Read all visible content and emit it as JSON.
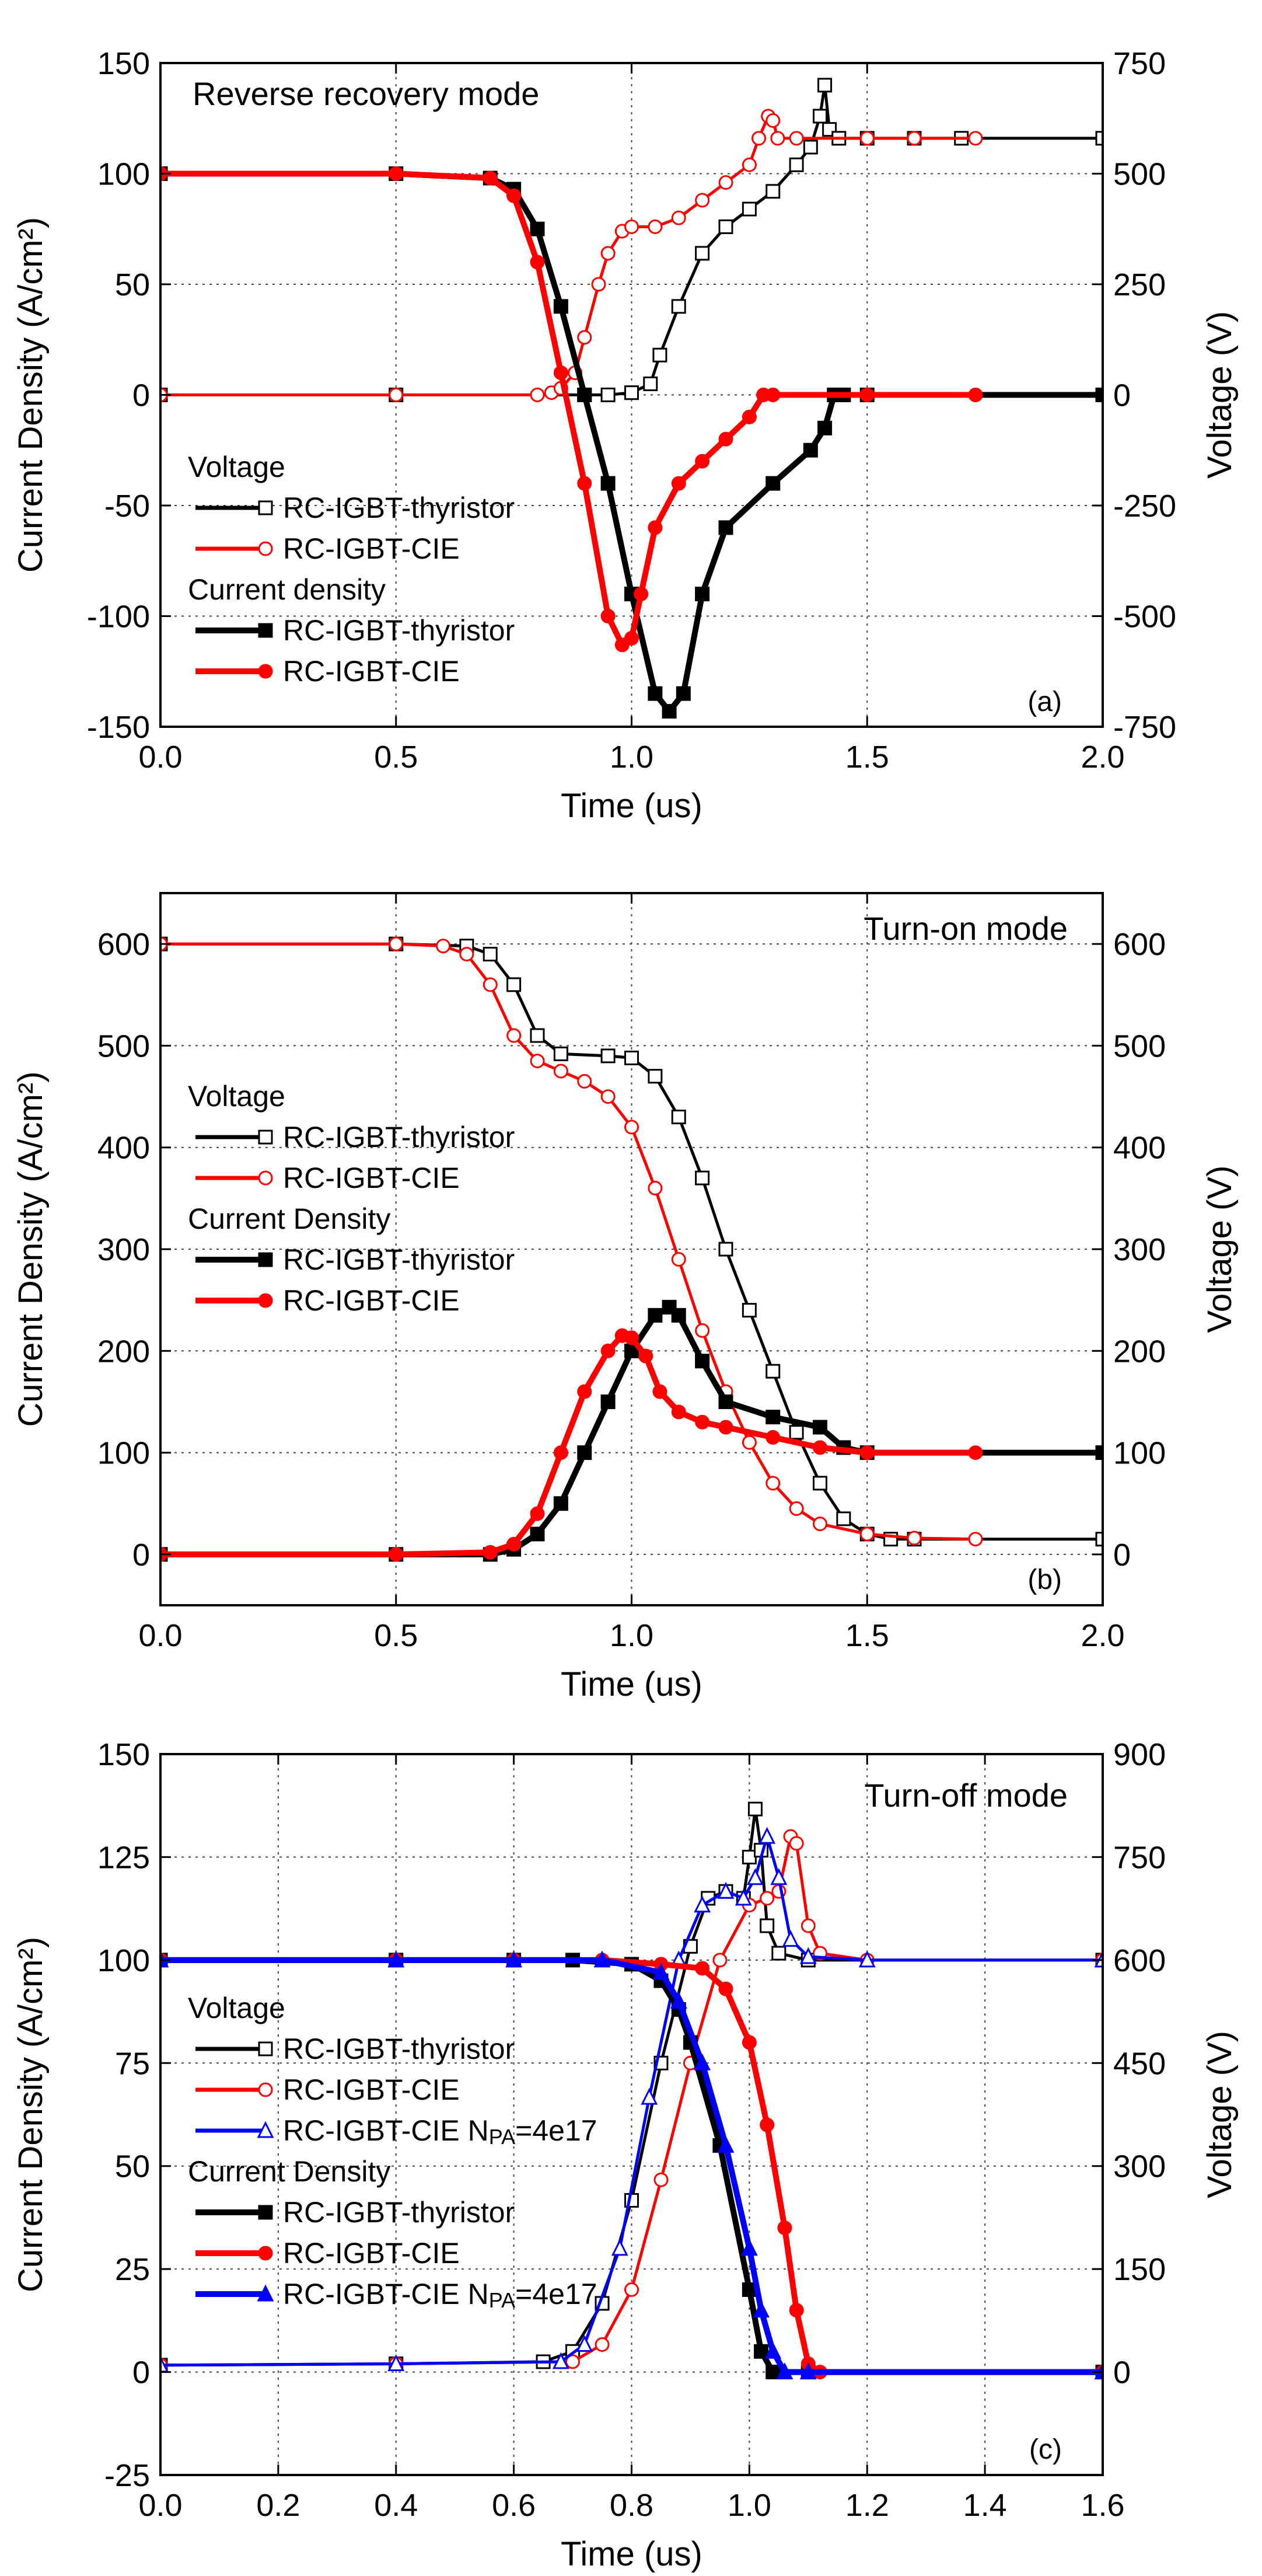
{
  "chart_data": [
    {
      "type": "line",
      "panel_tag": "(a)",
      "mode_label": "Reverse recovery mode",
      "xlabel": "Time (us)",
      "ylabel": "Current Density (A/cm²)",
      "y2label": "Voltage (V)",
      "xlim": [
        0.0,
        2.0
      ],
      "ylim": [
        -150,
        150
      ],
      "y2lim": [
        -750,
        750
      ],
      "xticks": [
        "0.0",
        "0.5",
        "1.0",
        "1.5",
        "2.0"
      ],
      "yticks": [
        "-150",
        "-100",
        "-50",
        "0",
        "50",
        "100",
        "150"
      ],
      "y2ticks": [
        "-750",
        "-500",
        "-250",
        "0",
        "250",
        "500",
        "750"
      ],
      "grid": true,
      "legend": [
        {
          "header": "Voltage"
        },
        {
          "label": "RC-IGBT-thyristor",
          "series": 0
        },
        {
          "label": "RC-IGBT-CIE",
          "series": 1
        },
        {
          "header": "Current density"
        },
        {
          "label": "RC-IGBT-thyristor",
          "series": 2
        },
        {
          "label": "RC-IGBT-CIE",
          "series": 3
        }
      ],
      "series": [
        {
          "name": "Voltage RC-IGBT-thyristor",
          "axis": "right",
          "color": "#000000",
          "marker": "square-open",
          "x": [
            0,
            0.5,
            0.9,
            0.95,
            1.0,
            1.04,
            1.06,
            1.1,
            1.15,
            1.2,
            1.25,
            1.3,
            1.35,
            1.38,
            1.4,
            1.41,
            1.42,
            1.44,
            1.5,
            1.6,
            1.7,
            2.0
          ],
          "y": [
            0,
            0,
            0,
            0,
            5,
            25,
            90,
            200,
            320,
            380,
            420,
            460,
            520,
            560,
            630,
            700,
            600,
            580,
            580,
            580,
            580,
            580
          ]
        },
        {
          "name": "Voltage RC-IGBT-CIE",
          "axis": "right",
          "color": "#ff0000",
          "marker": "circle-open",
          "x": [
            0,
            0.5,
            0.8,
            0.83,
            0.85,
            0.88,
            0.9,
            0.93,
            0.95,
            0.98,
            1.0,
            1.05,
            1.1,
            1.15,
            1.2,
            1.25,
            1.27,
            1.29,
            1.3,
            1.31,
            1.35,
            1.5,
            1.6,
            1.73
          ],
          "y": [
            0,
            0,
            0,
            5,
            15,
            50,
            130,
            250,
            320,
            370,
            380,
            380,
            400,
            440,
            480,
            520,
            580,
            630,
            620,
            580,
            580,
            580,
            580,
            580
          ]
        },
        {
          "name": "Current density RC-IGBT-thyristor",
          "axis": "left",
          "color": "#000000",
          "marker": "square-filled",
          "x": [
            0,
            0.5,
            0.7,
            0.75,
            0.8,
            0.85,
            0.9,
            0.95,
            1.0,
            1.05,
            1.08,
            1.11,
            1.15,
            1.2,
            1.3,
            1.38,
            1.41,
            1.43,
            1.45,
            1.5,
            2.0
          ],
          "y": [
            100,
            100,
            98,
            93,
            75,
            40,
            0,
            -40,
            -90,
            -135,
            -143,
            -135,
            -90,
            -60,
            -40,
            -25,
            -15,
            0,
            0,
            0,
            0
          ]
        },
        {
          "name": "Current density RC-IGBT-CIE",
          "axis": "left",
          "color": "#ff0000",
          "marker": "circle-filled",
          "x": [
            0,
            0.5,
            0.7,
            0.75,
            0.8,
            0.85,
            0.9,
            0.95,
            0.98,
            1.0,
            1.02,
            1.05,
            1.1,
            1.15,
            1.2,
            1.25,
            1.28,
            1.3,
            1.5,
            1.73
          ],
          "y": [
            100,
            100,
            98,
            90,
            60,
            10,
            -40,
            -100,
            -113,
            -110,
            -90,
            -60,
            -40,
            -30,
            -20,
            -10,
            0,
            0,
            0,
            0
          ]
        }
      ]
    },
    {
      "type": "line",
      "panel_tag": "(b)",
      "mode_label": "Turn-on mode",
      "xlabel": "Time (us)",
      "ylabel": "Current Density (A/cm²)",
      "y2label": "Voltage (V)",
      "xlim": [
        0.0,
        2.0
      ],
      "ylim": [
        -50,
        650
      ],
      "y2lim": [
        -50,
        650
      ],
      "xticks": [
        "0.0",
        "0.5",
        "1.0",
        "1.5",
        "2.0"
      ],
      "yticks": [
        "0",
        "100",
        "200",
        "300",
        "400",
        "500",
        "600"
      ],
      "y2ticks": [
        "0",
        "100",
        "200",
        "300",
        "400",
        "500",
        "600"
      ],
      "grid": true,
      "legend": [
        {
          "header": "Voltage"
        },
        {
          "label": "RC-IGBT-thyristor",
          "series": 0
        },
        {
          "label": "RC-IGBT-CIE",
          "series": 1
        },
        {
          "header": "Current Density"
        },
        {
          "label": "RC-IGBT-thyristor",
          "series": 2
        },
        {
          "label": "RC-IGBT-CIE",
          "series": 3
        }
      ],
      "series": [
        {
          "name": "Voltage RC-IGBT-thyristor",
          "axis": "right",
          "color": "#000000",
          "marker": "square-open",
          "x": [
            0,
            0.5,
            0.65,
            0.7,
            0.75,
            0.8,
            0.85,
            0.95,
            1.0,
            1.05,
            1.1,
            1.15,
            1.2,
            1.25,
            1.3,
            1.35,
            1.4,
            1.45,
            1.5,
            1.55,
            1.6,
            2.0
          ],
          "y": [
            600,
            600,
            598,
            590,
            560,
            510,
            492,
            490,
            488,
            470,
            430,
            370,
            300,
            240,
            180,
            120,
            70,
            35,
            20,
            15,
            15,
            15
          ]
        },
        {
          "name": "Voltage RC-IGBT-CIE",
          "axis": "right",
          "color": "#ff0000",
          "marker": "circle-open",
          "x": [
            0,
            0.5,
            0.6,
            0.65,
            0.7,
            0.75,
            0.8,
            0.85,
            0.9,
            0.95,
            1.0,
            1.05,
            1.1,
            1.15,
            1.2,
            1.25,
            1.3,
            1.35,
            1.4,
            1.5,
            1.6,
            1.73
          ],
          "y": [
            600,
            600,
            598,
            590,
            560,
            510,
            485,
            475,
            465,
            450,
            420,
            360,
            290,
            220,
            160,
            110,
            70,
            45,
            30,
            20,
            16,
            15
          ]
        },
        {
          "name": "Current Density RC-IGBT-thyristor",
          "axis": "left",
          "color": "#000000",
          "marker": "square-filled",
          "x": [
            0,
            0.5,
            0.7,
            0.75,
            0.8,
            0.85,
            0.9,
            0.95,
            1.0,
            1.05,
            1.08,
            1.1,
            1.15,
            1.2,
            1.3,
            1.4,
            1.45,
            1.5,
            2.0
          ],
          "y": [
            0,
            0,
            0,
            5,
            20,
            50,
            100,
            150,
            200,
            235,
            243,
            235,
            190,
            150,
            135,
            125,
            105,
            100,
            100
          ]
        },
        {
          "name": "Current Density RC-IGBT-CIE",
          "axis": "left",
          "color": "#ff0000",
          "marker": "circle-filled",
          "x": [
            0,
            0.5,
            0.7,
            0.75,
            0.8,
            0.85,
            0.9,
            0.95,
            0.98,
            1.0,
            1.03,
            1.06,
            1.1,
            1.15,
            1.2,
            1.3,
            1.4,
            1.5,
            1.73
          ],
          "y": [
            0,
            0,
            2,
            10,
            40,
            100,
            160,
            200,
            215,
            213,
            195,
            160,
            140,
            130,
            125,
            115,
            105,
            100,
            100
          ]
        }
      ]
    },
    {
      "type": "line",
      "panel_tag": "(c)",
      "mode_label": "Turn-off mode",
      "xlabel": "Time (us)",
      "ylabel": "Current Density (A/cm²)",
      "y2label": "Voltage (V)",
      "xlim": [
        0.0,
        1.6
      ],
      "ylim": [
        -25,
        150
      ],
      "y2lim": [
        -150,
        900
      ],
      "xticks": [
        "0.0",
        "0.2",
        "0.4",
        "0.6",
        "0.8",
        "1.0",
        "1.2",
        "1.4",
        "1.6"
      ],
      "yticks": [
        "-25",
        "0",
        "25",
        "50",
        "75",
        "100",
        "125",
        "150"
      ],
      "y2ticks": [
        "0",
        "150",
        "300",
        "450",
        "600",
        "750",
        "900"
      ],
      "grid": true,
      "legend": [
        {
          "header": "Voltage"
        },
        {
          "label": "RC-IGBT-thyristor",
          "series": 0
        },
        {
          "label": "RC-IGBT-CIE",
          "series": 1
        },
        {
          "label": "RC-IGBT-CIE N",
          "sub": "PA",
          "tail": "=4e17",
          "series": 2
        },
        {
          "header": "Current Density"
        },
        {
          "label": "RC-IGBT-thyristor",
          "series": 3
        },
        {
          "label": "RC-IGBT-CIE",
          "series": 4
        },
        {
          "label": "RC-IGBT-CIE N",
          "sub": "PA",
          "tail": "=4e17",
          "series": 5
        }
      ],
      "series": [
        {
          "name": "Voltage RC-IGBT-thyristor",
          "axis": "right",
          "color": "#000000",
          "marker": "square-open",
          "x": [
            0,
            0.4,
            0.65,
            0.7,
            0.75,
            0.8,
            0.85,
            0.9,
            0.93,
            0.96,
            0.99,
            1.0,
            1.01,
            1.02,
            1.03,
            1.05,
            1.1,
            1.6
          ],
          "y": [
            10,
            12,
            15,
            30,
            100,
            250,
            450,
            620,
            690,
            700,
            690,
            750,
            820,
            760,
            650,
            610,
            600,
            600
          ]
        },
        {
          "name": "Voltage RC-IGBT-CIE",
          "axis": "right",
          "color": "#ff0000",
          "marker": "circle-open",
          "x": [
            0,
            0.4,
            0.7,
            0.75,
            0.8,
            0.85,
            0.9,
            0.95,
            1.0,
            1.03,
            1.05,
            1.07,
            1.08,
            1.1,
            1.12,
            1.2,
            1.6
          ],
          "y": [
            10,
            12,
            15,
            40,
            120,
            280,
            450,
            600,
            680,
            690,
            700,
            780,
            770,
            650,
            610,
            600,
            600
          ]
        },
        {
          "name": "Voltage RC-IGBT-CIE NPA=4e17",
          "axis": "right",
          "color": "#0000ff",
          "marker": "triangle-open",
          "x": [
            0,
            0.4,
            0.68,
            0.72,
            0.78,
            0.83,
            0.88,
            0.92,
            0.96,
            0.99,
            1.01,
            1.03,
            1.05,
            1.07,
            1.1,
            1.2,
            1.6
          ],
          "y": [
            10,
            12,
            15,
            40,
            180,
            400,
            600,
            680,
            700,
            690,
            720,
            780,
            720,
            630,
            605,
            600,
            600
          ]
        },
        {
          "name": "Current Density RC-IGBT-thyristor",
          "axis": "left",
          "color": "#000000",
          "marker": "square-filled",
          "x": [
            0,
            0.4,
            0.6,
            0.7,
            0.8,
            0.85,
            0.88,
            0.9,
            0.95,
            1.0,
            1.02,
            1.04,
            1.1,
            1.6
          ],
          "y": [
            100,
            100,
            100,
            100,
            99,
            95,
            88,
            80,
            55,
            20,
            5,
            0,
            0,
            0
          ]
        },
        {
          "name": "Current Density RC-IGBT-CIE",
          "axis": "left",
          "color": "#ff0000",
          "marker": "circle-filled",
          "x": [
            0,
            0.4,
            0.6,
            0.75,
            0.85,
            0.92,
            0.96,
            1.0,
            1.03,
            1.06,
            1.08,
            1.1,
            1.12,
            1.6
          ],
          "y": [
            100,
            100,
            100,
            100,
            99,
            98,
            93,
            80,
            60,
            35,
            15,
            2,
            0,
            0
          ]
        },
        {
          "name": "Current Density RC-IGBT-CIE NPA=4e17",
          "axis": "left",
          "color": "#0000ff",
          "marker": "triangle-filled",
          "x": [
            0,
            0.4,
            0.6,
            0.75,
            0.85,
            0.88,
            0.92,
            0.96,
            1.0,
            1.02,
            1.04,
            1.06,
            1.1,
            1.6
          ],
          "y": [
            100,
            100,
            100,
            100,
            97,
            90,
            75,
            55,
            30,
            15,
            5,
            0,
            0,
            0
          ]
        }
      ]
    }
  ]
}
